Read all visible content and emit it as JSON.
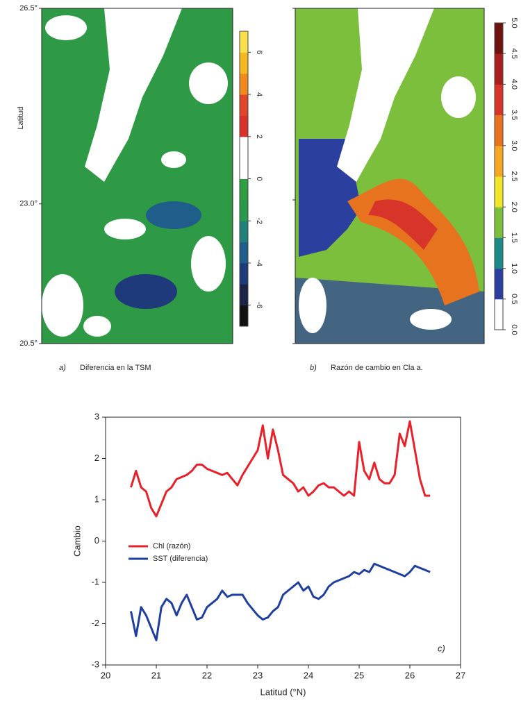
{
  "chart_data": [
    {
      "type": "map",
      "ylabel": "Latitud",
      "ylim": [
        20.5,
        26.5
      ],
      "yticks": [
        {
          "value": 26.5,
          "label": "26.5°"
        },
        {
          "value": 23.0,
          "label": "23.0°"
        },
        {
          "value": 20.5,
          "label": "20.5°"
        }
      ],
      "panel_label": "a)",
      "caption": "Diferencia en la TSM",
      "colorbar": {
        "lim": [
          -7,
          7
        ],
        "ticks": [
          6,
          4,
          2,
          0,
          -2,
          -4,
          -6
        ],
        "colors": [
          "#111111",
          "#1b2347",
          "#1f3a7a",
          "#1f5e8a",
          "#21807a",
          "#2a9a4a",
          "#2e9e40",
          "#ffffff",
          "#ffffff",
          "#d9322b",
          "#e0452a",
          "#f08a1c",
          "#f5b820",
          "#f8e04a"
        ]
      }
    },
    {
      "type": "map",
      "panel_label": "b)",
      "caption": "Razón de cambio en Cla a.",
      "colorbar": {
        "lim": [
          0,
          5
        ],
        "ticks": [
          {
            "value": 0,
            "label": "0.0"
          },
          0.5,
          {
            "value": 1,
            "label": "1.0"
          },
          1.5,
          {
            "value": 2,
            "label": "2.0"
          },
          2.5,
          {
            "value": 3,
            "label": "3.0"
          },
          3.5,
          {
            "value": 4,
            "label": "4.0"
          },
          4.5,
          {
            "value": 5,
            "label": "5.0"
          }
        ],
        "colors": [
          "#ffffff",
          "#2b3f9e",
          "#1d8a86",
          "#7cbf3c",
          "#f0e52a",
          "#f5a623",
          "#e8731f",
          "#d8352a",
          "#a8201e",
          "#6e1410"
        ]
      }
    },
    {
      "type": "line",
      "xlabel": "Latitud (°N)",
      "ylabel": "Cambio",
      "annotation": "c)",
      "xlim": [
        20,
        27
      ],
      "xticks": [
        20,
        21,
        22,
        23,
        24,
        25,
        26,
        27
      ],
      "ylim": [
        -3,
        3
      ],
      "yticks": [
        -3,
        -2,
        -1,
        0,
        1,
        2,
        3
      ],
      "x": [
        20.5,
        20.6,
        20.7,
        20.8,
        20.9,
        21.0,
        21.1,
        21.2,
        21.3,
        21.4,
        21.5,
        21.6,
        21.7,
        21.8,
        21.9,
        22.0,
        22.1,
        22.2,
        22.3,
        22.4,
        22.5,
        22.6,
        22.7,
        22.8,
        22.9,
        23.0,
        23.1,
        23.2,
        23.3,
        23.4,
        23.5,
        23.6,
        23.7,
        23.8,
        23.9,
        24.0,
        24.1,
        24.2,
        24.3,
        24.4,
        24.5,
        24.6,
        24.7,
        24.8,
        24.9,
        25.0,
        25.1,
        25.2,
        25.3,
        25.4,
        25.5,
        25.6,
        25.7,
        25.8,
        25.9,
        26.0,
        26.1,
        26.2,
        26.3,
        26.4
      ],
      "series": [
        {
          "name": "Chl (razón)",
          "color": "#e8202a",
          "values": [
            1.3,
            1.7,
            1.3,
            1.2,
            0.8,
            0.6,
            0.9,
            1.2,
            1.3,
            1.5,
            1.55,
            1.6,
            1.7,
            1.85,
            1.85,
            1.75,
            1.7,
            1.65,
            1.6,
            1.65,
            1.5,
            1.35,
            1.6,
            1.8,
            2.0,
            2.2,
            2.8,
            2.0,
            2.7,
            2.2,
            1.6,
            1.5,
            1.4,
            1.2,
            1.3,
            1.1,
            1.2,
            1.35,
            1.4,
            1.3,
            1.3,
            1.2,
            1.1,
            1.2,
            1.1,
            2.4,
            1.7,
            1.5,
            1.9,
            1.5,
            1.4,
            1.4,
            1.6,
            2.6,
            2.3,
            2.9,
            2.2,
            1.5,
            1.1,
            1.1
          ]
        },
        {
          "name": "SST (diferencia)",
          "color": "#1f3fa0",
          "values": [
            -1.7,
            -2.3,
            -1.6,
            -1.8,
            -2.1,
            -2.4,
            -1.6,
            -1.4,
            -1.5,
            -1.8,
            -1.5,
            -1.3,
            -1.6,
            -1.9,
            -1.85,
            -1.6,
            -1.5,
            -1.4,
            -1.2,
            -1.35,
            -1.3,
            -1.3,
            -1.3,
            -1.5,
            -1.65,
            -1.8,
            -1.9,
            -1.85,
            -1.7,
            -1.6,
            -1.3,
            -1.2,
            -1.1,
            -1.0,
            -1.2,
            -1.1,
            -1.35,
            -1.4,
            -1.3,
            -1.1,
            -1.0,
            -0.95,
            -0.9,
            -0.85,
            -0.75,
            -0.8,
            -0.7,
            -0.75,
            -0.55,
            -0.6,
            -0.65,
            -0.7,
            -0.75,
            -0.8,
            -0.85,
            -0.75,
            -0.6,
            -0.65,
            -0.7,
            -0.75
          ]
        }
      ]
    }
  ]
}
